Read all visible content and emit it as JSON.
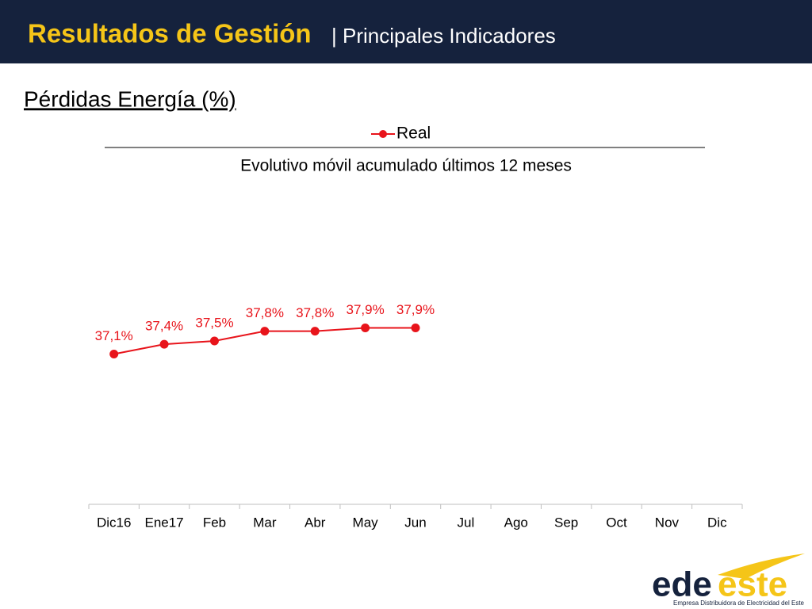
{
  "header": {
    "title": "Resultados de Gestión",
    "subtitle": "| Principales Indicadores"
  },
  "section_title": "Pérdidas Energía (%)",
  "chart_data": {
    "type": "line",
    "title": "Evolutivo móvil  acumulado últimos 12 meses",
    "categories": [
      "Dic16",
      "Ene17",
      "Feb",
      "Mar",
      "Abr",
      "May",
      "Jun",
      "Jul",
      "Ago",
      "Sep",
      "Oct",
      "Nov",
      "Dic"
    ],
    "series": [
      {
        "name": "Real",
        "color": "#e8141b",
        "values": [
          37.1,
          37.4,
          37.5,
          37.8,
          37.8,
          37.9,
          37.9,
          null,
          null,
          null,
          null,
          null,
          null
        ],
        "value_labels": [
          "37,1%",
          "37,4%",
          "37,5%",
          "37,8%",
          "37,8%",
          "37,9%",
          "37,9%",
          null,
          null,
          null,
          null,
          null,
          null
        ]
      }
    ],
    "ylim": [
      32.5,
      42.5
    ],
    "legend": "top",
    "grid": false
  },
  "logo": {
    "name_1": "ede",
    "name_2": "este",
    "tagline": "Empresa Distribuidora de Electricidad del Este"
  }
}
